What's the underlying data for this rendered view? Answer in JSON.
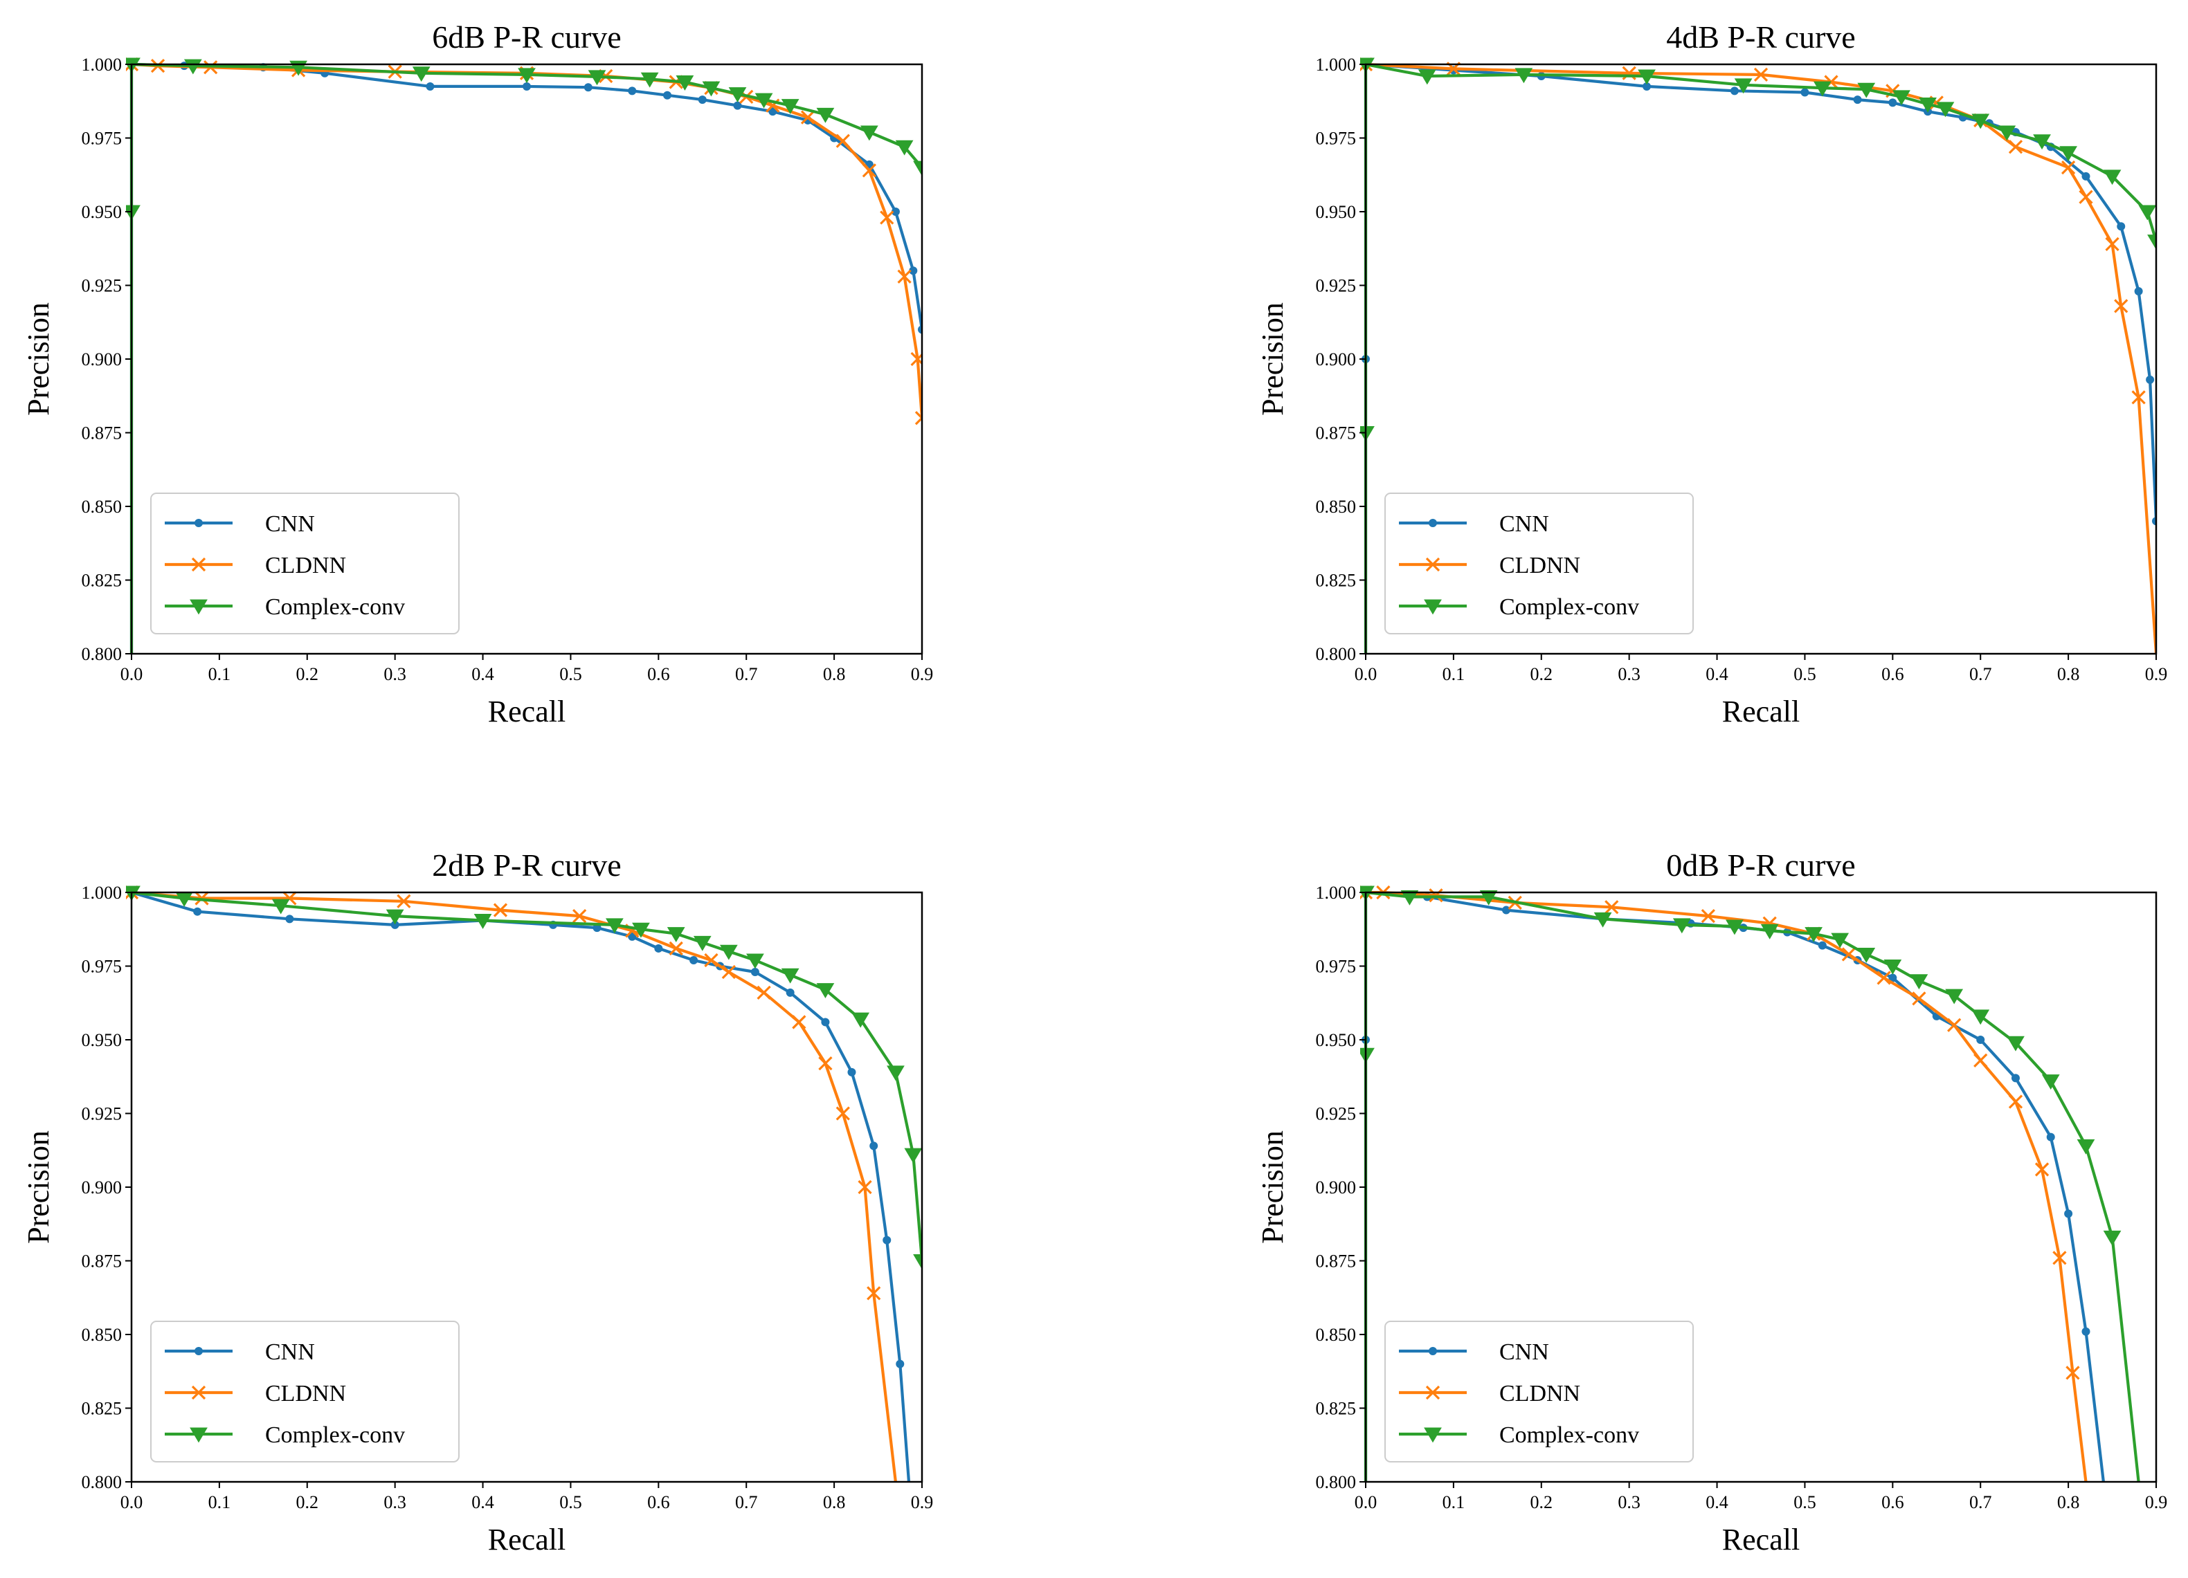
{
  "chart_data": [
    {
      "type": "line",
      "title": "6dB P-R curve",
      "xlabel": "Recall",
      "ylabel": "Precision",
      "xlim": [
        0.0,
        0.9
      ],
      "ylim": [
        0.8,
        1.0
      ],
      "xticks": [
        "0.0",
        "0.1",
        "0.2",
        "0.3",
        "0.4",
        "0.5",
        "0.6",
        "0.7",
        "0.8",
        "0.9"
      ],
      "yticks": [
        "0.800",
        "0.825",
        "0.850",
        "0.875",
        "0.900",
        "0.925",
        "0.950",
        "0.975",
        "1.000"
      ],
      "legend_position": "lower-left",
      "series": [
        {
          "name": "CNN",
          "color": "#1f77b4",
          "marker": "dot",
          "x": [
            0.0,
            0.0,
            0.0,
            0.06,
            0.15,
            0.22,
            0.34,
            0.45,
            0.52,
            0.57,
            0.61,
            0.65,
            0.69,
            0.73,
            0.77,
            0.8,
            0.84,
            0.87,
            0.89,
            0.9
          ],
          "y": [
            0.8,
            0.95,
            1.0,
            0.9995,
            0.999,
            0.997,
            0.9925,
            0.9925,
            0.9922,
            0.991,
            0.9895,
            0.988,
            0.986,
            0.984,
            0.981,
            0.975,
            0.966,
            0.95,
            0.93,
            0.91
          ]
        },
        {
          "name": "CLDNN",
          "color": "#ff7f0e",
          "marker": "x",
          "x": [
            0.0,
            0.03,
            0.09,
            0.19,
            0.3,
            0.45,
            0.54,
            0.62,
            0.66,
            0.7,
            0.73,
            0.77,
            0.81,
            0.84,
            0.86,
            0.88,
            0.895,
            0.9
          ],
          "y": [
            1.0,
            0.9995,
            0.999,
            0.998,
            0.9975,
            0.997,
            0.996,
            0.994,
            0.992,
            0.989,
            0.986,
            0.982,
            0.974,
            0.964,
            0.948,
            0.928,
            0.9,
            0.88
          ]
        },
        {
          "name": "Complex-conv",
          "color": "#2ca02c",
          "marker": "triangle-down",
          "x": [
            0.0,
            0.0,
            0.0,
            0.07,
            0.19,
            0.33,
            0.45,
            0.53,
            0.59,
            0.63,
            0.66,
            0.69,
            0.72,
            0.75,
            0.79,
            0.84,
            0.88,
            0.9
          ],
          "y": [
            0.8,
            0.95,
            1.0,
            0.9995,
            0.999,
            0.997,
            0.9965,
            0.9958,
            0.995,
            0.994,
            0.992,
            0.99,
            0.988,
            0.986,
            0.983,
            0.977,
            0.972,
            0.965
          ]
        }
      ]
    },
    {
      "type": "line",
      "title": "4dB P-R curve",
      "xlabel": "Recall",
      "ylabel": "Precision",
      "xlim": [
        0.0,
        0.9
      ],
      "ylim": [
        0.8,
        1.0
      ],
      "xticks": [
        "0.0",
        "0.1",
        "0.2",
        "0.3",
        "0.4",
        "0.5",
        "0.6",
        "0.7",
        "0.8",
        "0.9"
      ],
      "yticks": [
        "0.800",
        "0.825",
        "0.850",
        "0.875",
        "0.900",
        "0.925",
        "0.950",
        "0.975",
        "1.000"
      ],
      "legend_position": "lower-left",
      "series": [
        {
          "name": "CNN",
          "color": "#1f77b4",
          "marker": "dot",
          "x": [
            0.0,
            0.0,
            0.0,
            0.1,
            0.2,
            0.32,
            0.42,
            0.5,
            0.56,
            0.6,
            0.64,
            0.68,
            0.71,
            0.74,
            0.78,
            0.82,
            0.86,
            0.88,
            0.893,
            0.9
          ],
          "y": [
            0.8,
            0.9,
            1.0,
            0.998,
            0.996,
            0.9925,
            0.991,
            0.9905,
            0.988,
            0.987,
            0.984,
            0.982,
            0.98,
            0.977,
            0.972,
            0.962,
            0.945,
            0.923,
            0.893,
            0.845
          ]
        },
        {
          "name": "CLDNN",
          "color": "#ff7f0e",
          "marker": "x",
          "x": [
            0.0,
            0.1,
            0.3,
            0.45,
            0.53,
            0.6,
            0.65,
            0.7,
            0.74,
            0.8,
            0.82,
            0.85,
            0.86,
            0.88,
            0.9
          ],
          "y": [
            1.0,
            0.9985,
            0.997,
            0.9965,
            0.994,
            0.991,
            0.987,
            0.981,
            0.972,
            0.965,
            0.955,
            0.939,
            0.918,
            0.887,
            0.8
          ]
        },
        {
          "name": "Complex-conv",
          "color": "#2ca02c",
          "marker": "triangle-down",
          "x": [
            0.0,
            0.0,
            0.0,
            0.07,
            0.18,
            0.32,
            0.43,
            0.52,
            0.57,
            0.61,
            0.64,
            0.66,
            0.7,
            0.73,
            0.77,
            0.8,
            0.85,
            0.89,
            0.9
          ],
          "y": [
            0.8,
            0.875,
            1.0,
            0.996,
            0.9965,
            0.996,
            0.993,
            0.992,
            0.9915,
            0.989,
            0.9865,
            0.985,
            0.981,
            0.977,
            0.974,
            0.97,
            0.962,
            0.95,
            0.94
          ]
        }
      ]
    },
    {
      "type": "line",
      "title": "2dB P-R curve",
      "xlabel": "Recall",
      "ylabel": "Precision",
      "xlim": [
        0.0,
        0.9
      ],
      "ylim": [
        0.8,
        1.0
      ],
      "xticks": [
        "0.0",
        "0.1",
        "0.2",
        "0.3",
        "0.4",
        "0.5",
        "0.6",
        "0.7",
        "0.8",
        "0.9"
      ],
      "yticks": [
        "0.800",
        "0.825",
        "0.850",
        "0.875",
        "0.900",
        "0.925",
        "0.950",
        "0.975",
        "1.000"
      ],
      "legend_position": "lower-left",
      "series": [
        {
          "name": "CNN",
          "color": "#1f77b4",
          "marker": "dot",
          "x": [
            0.0,
            0.075,
            0.18,
            0.3,
            0.4,
            0.48,
            0.53,
            0.57,
            0.6,
            0.64,
            0.67,
            0.71,
            0.75,
            0.79,
            0.82,
            0.845,
            0.86,
            0.875,
            0.885
          ],
          "y": [
            1.0,
            0.9935,
            0.991,
            0.989,
            0.9905,
            0.989,
            0.988,
            0.985,
            0.981,
            0.977,
            0.975,
            0.973,
            0.966,
            0.956,
            0.939,
            0.914,
            0.882,
            0.84,
            0.8
          ]
        },
        {
          "name": "CLDNN",
          "color": "#ff7f0e",
          "marker": "x",
          "x": [
            0.0,
            0.08,
            0.18,
            0.31,
            0.42,
            0.51,
            0.57,
            0.62,
            0.66,
            0.68,
            0.72,
            0.76,
            0.79,
            0.81,
            0.835,
            0.845,
            0.87
          ],
          "y": [
            1.0,
            0.998,
            0.998,
            0.997,
            0.994,
            0.992,
            0.987,
            0.981,
            0.977,
            0.973,
            0.966,
            0.956,
            0.942,
            0.925,
            0.9,
            0.864,
            0.8
          ]
        },
        {
          "name": "Complex-conv",
          "color": "#2ca02c",
          "marker": "triangle-down",
          "x": [
            0.0,
            0.06,
            0.17,
            0.3,
            0.4,
            0.55,
            0.58,
            0.62,
            0.65,
            0.68,
            0.71,
            0.75,
            0.79,
            0.83,
            0.87,
            0.89,
            0.9
          ],
          "y": [
            1.0,
            0.998,
            0.9955,
            0.992,
            0.9905,
            0.989,
            0.9875,
            0.986,
            0.983,
            0.98,
            0.977,
            0.972,
            0.967,
            0.957,
            0.939,
            0.911,
            0.875
          ]
        }
      ]
    },
    {
      "type": "line",
      "title": "0dB P-R curve",
      "xlabel": "Recall",
      "ylabel": "Precision",
      "xlim": [
        0.0,
        0.9
      ],
      "ylim": [
        0.8,
        1.0
      ],
      "xticks": [
        "0.0",
        "0.1",
        "0.2",
        "0.3",
        "0.4",
        "0.5",
        "0.6",
        "0.7",
        "0.8",
        "0.9"
      ],
      "yticks": [
        "0.800",
        "0.825",
        "0.850",
        "0.875",
        "0.900",
        "0.925",
        "0.950",
        "0.975",
        "1.000"
      ],
      "legend_position": "lower-left",
      "series": [
        {
          "name": "CNN",
          "color": "#1f77b4",
          "marker": "dot",
          "x": [
            0.0,
            0.0,
            0.0,
            0.07,
            0.16,
            0.27,
            0.37,
            0.43,
            0.48,
            0.52,
            0.56,
            0.6,
            0.65,
            0.7,
            0.74,
            0.78,
            0.8,
            0.82,
            0.84
          ],
          "y": [
            0.8,
            0.95,
            1.0,
            0.9985,
            0.994,
            0.991,
            0.9895,
            0.988,
            0.9865,
            0.982,
            0.977,
            0.971,
            0.958,
            0.95,
            0.937,
            0.917,
            0.891,
            0.851,
            0.8
          ]
        },
        {
          "name": "CLDNN",
          "color": "#ff7f0e",
          "marker": "x",
          "x": [
            0.0,
            0.02,
            0.08,
            0.17,
            0.28,
            0.39,
            0.46,
            0.51,
            0.55,
            0.59,
            0.63,
            0.67,
            0.7,
            0.74,
            0.77,
            0.79,
            0.805,
            0.82
          ],
          "y": [
            1.0,
            1.0,
            0.999,
            0.9965,
            0.995,
            0.992,
            0.9895,
            0.986,
            0.979,
            0.971,
            0.964,
            0.955,
            0.943,
            0.929,
            0.906,
            0.876,
            0.837,
            0.8
          ]
        },
        {
          "name": "Complex-conv",
          "color": "#2ca02c",
          "marker": "triangle-down",
          "x": [
            0.0,
            0.0,
            0.0,
            0.05,
            0.14,
            0.27,
            0.36,
            0.42,
            0.46,
            0.51,
            0.54,
            0.57,
            0.6,
            0.63,
            0.67,
            0.7,
            0.74,
            0.78,
            0.82,
            0.85,
            0.88
          ],
          "y": [
            0.8,
            0.945,
            1.0,
            0.9985,
            0.9985,
            0.991,
            0.989,
            0.9885,
            0.987,
            0.986,
            0.984,
            0.979,
            0.975,
            0.97,
            0.965,
            0.958,
            0.949,
            0.936,
            0.914,
            0.883,
            0.8
          ]
        }
      ]
    }
  ]
}
